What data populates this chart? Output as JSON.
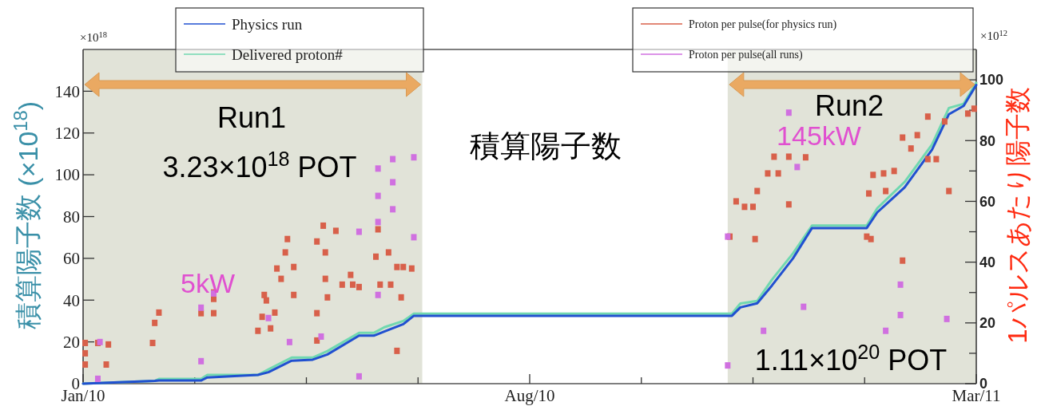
{
  "chart_data": {
    "type": "line",
    "xlim": [
      "2010-01-01",
      "2011-03-01"
    ],
    "xticks": [
      {
        "value": "2010-01-01",
        "label": "Jan/10"
      },
      {
        "value": "2010-02-23",
        "label": null
      },
      {
        "value": "2010-04-17",
        "label": null
      },
      {
        "value": "2010-06-09",
        "label": null
      },
      {
        "value": "2010-08-01",
        "label": "Aug/10"
      },
      {
        "value": "2010-09-23",
        "label": null
      },
      {
        "value": "2010-11-15",
        "label": null
      },
      {
        "value": "2011-01-07",
        "label": null
      },
      {
        "value": "2011-03-01",
        "label": "Mar/11"
      }
    ],
    "ylim": [
      0,
      160
    ],
    "yticks": [
      0,
      20,
      40,
      60,
      80,
      100,
      120,
      140
    ],
    "y2lim": [
      0,
      110
    ],
    "y2ticks": [
      0,
      {
        "value": 10,
        "label": null
      },
      20,
      {
        "value": 30,
        "label": null
      },
      40,
      {
        "value": 50,
        "label": null
      },
      60,
      {
        "value": 70,
        "label": null
      },
      80,
      {
        "value": 90,
        "label": null
      },
      100
    ],
    "ylabel": "積算陽子数 (×10$^{18}$)",
    "y2label": "1パルスあたり陽子数",
    "legend": "top",
    "grid": false,
    "bands": [
      {
        "axis": "x",
        "from": "2010-01-01",
        "to": "2010-06-11",
        "label": "Run1",
        "color": "#e1e3d8"
      },
      {
        "axis": "x",
        "from": "2010-11-03",
        "to": "2011-03-01",
        "label": "Run2",
        "color": "#e1e3d8"
      }
    ],
    "annotations": [
      "3.23×10$^{18}$ POT",
      "5kW",
      "積算陽子数",
      "145kW",
      "1.11×10$^{20}$ POT",
      "×10$^{18}$",
      "×10$^{12}$"
    ],
    "series": [
      {
        "name": "Physics run",
        "color": "#2050d0",
        "x": [
          "2010-01-01",
          "2010-02-04",
          "2010-02-06",
          "2010-02-26",
          "2010-03-01",
          "2010-03-25",
          "2010-03-30",
          "2010-04-10",
          "2010-04-20",
          "2010-04-27",
          "2010-05-12",
          "2010-05-19",
          "2010-05-24",
          "2010-06-02",
          "2010-06-07",
          "2010-10-29",
          "2010-11-05",
          "2010-11-09",
          "2010-11-17",
          "2010-11-24",
          "2010-12-04",
          "2010-12-13",
          "2011-01-08",
          "2011-01-13",
          "2011-01-26",
          "2011-02-08",
          "2011-02-16",
          "2011-02-23",
          "2011-03-01"
        ],
        "values": [
          0,
          1.3,
          1.5,
          1.5,
          3,
          4.2,
          5.5,
          11,
          11.5,
          14,
          23,
          23,
          25,
          28.5,
          32.5,
          32.5,
          32.5,
          36.5,
          38.5,
          47,
          60,
          74.5,
          74.5,
          82,
          94,
          112,
          129,
          133,
          143
        ]
      },
      {
        "name": "Delivered proton#",
        "color": "#70d8b0",
        "x": [
          "2010-01-01",
          "2010-02-04",
          "2010-02-06",
          "2010-02-26",
          "2010-03-01",
          "2010-03-25",
          "2010-03-30",
          "2010-04-10",
          "2010-04-20",
          "2010-04-27",
          "2010-05-12",
          "2010-05-19",
          "2010-05-24",
          "2010-06-02",
          "2010-06-07",
          "2010-10-29",
          "2010-11-05",
          "2010-11-09",
          "2010-11-17",
          "2010-11-24",
          "2010-12-04",
          "2010-12-13",
          "2011-01-08",
          "2011-01-13",
          "2011-01-26",
          "2011-02-08",
          "2011-02-16",
          "2011-02-23",
          "2011-03-01"
        ],
        "values": [
          0,
          1.3,
          2.3,
          2.3,
          4.2,
          4.2,
          6.8,
          12.5,
          12.5,
          15.6,
          24.3,
          24.3,
          27,
          30,
          33.5,
          33.5,
          33.5,
          38.4,
          39.6,
          49.8,
          62.4,
          75.7,
          75.7,
          84,
          96.6,
          114.5,
          132,
          134,
          144
        ]
      },
      {
        "name": "Proton per pulse(for physics run)",
        "type": "scatter",
        "axis": "y2",
        "marker": "square",
        "color": "#d8604a",
        "x": [
          "2010-01-02",
          "2010-01-08",
          "2010-01-13",
          "2010-01-02",
          "2010-01-02",
          "2010-01-12",
          "2010-02-03",
          "2010-02-04",
          "2010-02-06",
          "2010-02-26",
          "2010-03-04",
          "2010-03-04",
          "2010-03-04",
          "2010-03-28",
          "2010-03-29",
          "2010-03-27",
          "2010-03-25",
          "2010-03-31",
          "2010-04-02",
          "2010-04-03",
          "2010-04-05",
          "2010-04-08",
          "2010-04-07",
          "2010-04-11",
          "2010-04-11",
          "2010-04-22",
          "2010-04-25",
          "2010-04-26",
          "2010-04-26",
          "2010-05-01",
          "2010-04-22",
          "2010-05-04",
          "2010-05-09",
          "2010-05-08",
          "2010-05-12",
          "2010-05-22",
          "2010-05-27",
          "2010-05-30",
          "2010-06-02",
          "2010-06-06",
          "2010-05-21",
          "2010-05-20",
          "2010-05-26",
          "2010-06-01",
          "2010-05-30",
          "2010-04-22",
          "2010-04-27",
          "2010-11-07",
          "2010-11-11",
          "2010-11-15",
          "2010-11-17",
          "2010-11-22",
          "2010-11-27",
          "2010-11-25",
          "2010-12-02",
          "2010-12-10",
          "2010-12-02",
          "2011-01-09",
          "2011-01-11",
          "2011-01-16",
          "2011-01-21",
          "2011-01-17",
          "2011-01-25",
          "2011-02-01",
          "2011-01-29",
          "2011-02-06",
          "2011-02-06",
          "2011-02-10",
          "2011-02-14",
          "2011-02-16",
          "2011-02-25",
          "2011-02-28",
          "2011-01-08",
          "2011-01-10",
          "2010-11-04",
          "2010-11-16",
          "2011-01-25"
        ],
        "values": [
          13.4,
          13.4,
          12.9,
          10,
          6.3,
          6.3,
          13.4,
          20,
          23.4,
          23.2,
          23.2,
          27.9,
          30,
          29.2,
          27.4,
          22,
          17.4,
          18.2,
          23.4,
          37.9,
          34.5,
          47.6,
          43.2,
          38.4,
          29.2,
          46.8,
          52,
          43.2,
          34.5,
          50.3,
          23.2,
          32.6,
          32.6,
          35.8,
          31.8,
          32.6,
          32.6,
          38.4,
          38.4,
          37.9,
          50.8,
          41.8,
          43.2,
          28.4,
          10.8,
          14.2,
          28.4,
          60,
          58.2,
          58.2,
          63.4,
          69.2,
          69.2,
          74.7,
          74.7,
          74.5,
          59,
          62.6,
          68.7,
          69.2,
          70,
          63.4,
          81,
          81.8,
          77.4,
          87.9,
          73.9,
          73.9,
          86.3,
          63.4,
          88.9,
          90.5,
          48.4,
          47.6,
          48.4,
          47.6,
          40.5
        ]
      },
      {
        "name": "Proton per pulse(all runs)",
        "type": "scatter",
        "axis": "y2",
        "marker": "square",
        "color": "#d070e0",
        "x": [
          "2010-05-28",
          "2010-06-07",
          "2010-05-21",
          "2010-05-28",
          "2010-05-21",
          "2010-05-28",
          "2010-05-12",
          "2010-06-07",
          "2010-05-21",
          "2010-03-04",
          "2010-02-26",
          "2010-03-30",
          "2010-04-09",
          "2010-04-24",
          "2010-02-26",
          "2010-01-08",
          "2010-05-12",
          "2010-01-09",
          "2010-05-21",
          "2010-11-03",
          "2010-12-02",
          "2010-11-03",
          "2010-12-09",
          "2011-01-24",
          "2011-01-24",
          "2011-01-17",
          "2010-11-20",
          "2011-02-15",
          "2010-12-06"
        ],
        "values": [
          73.9,
          74.5,
          70.8,
          66.3,
          61.8,
          57.4,
          50,
          48.2,
          53.2,
          29.7,
          25,
          21.6,
          13.7,
          15.5,
          7.4,
          1.6,
          2.4,
          13.7,
          29.2,
          6,
          89.2,
          48.4,
          25.3,
          32.6,
          22.6,
          17.4,
          17.4,
          21.3,
          71.3
        ]
      }
    ]
  }
}
